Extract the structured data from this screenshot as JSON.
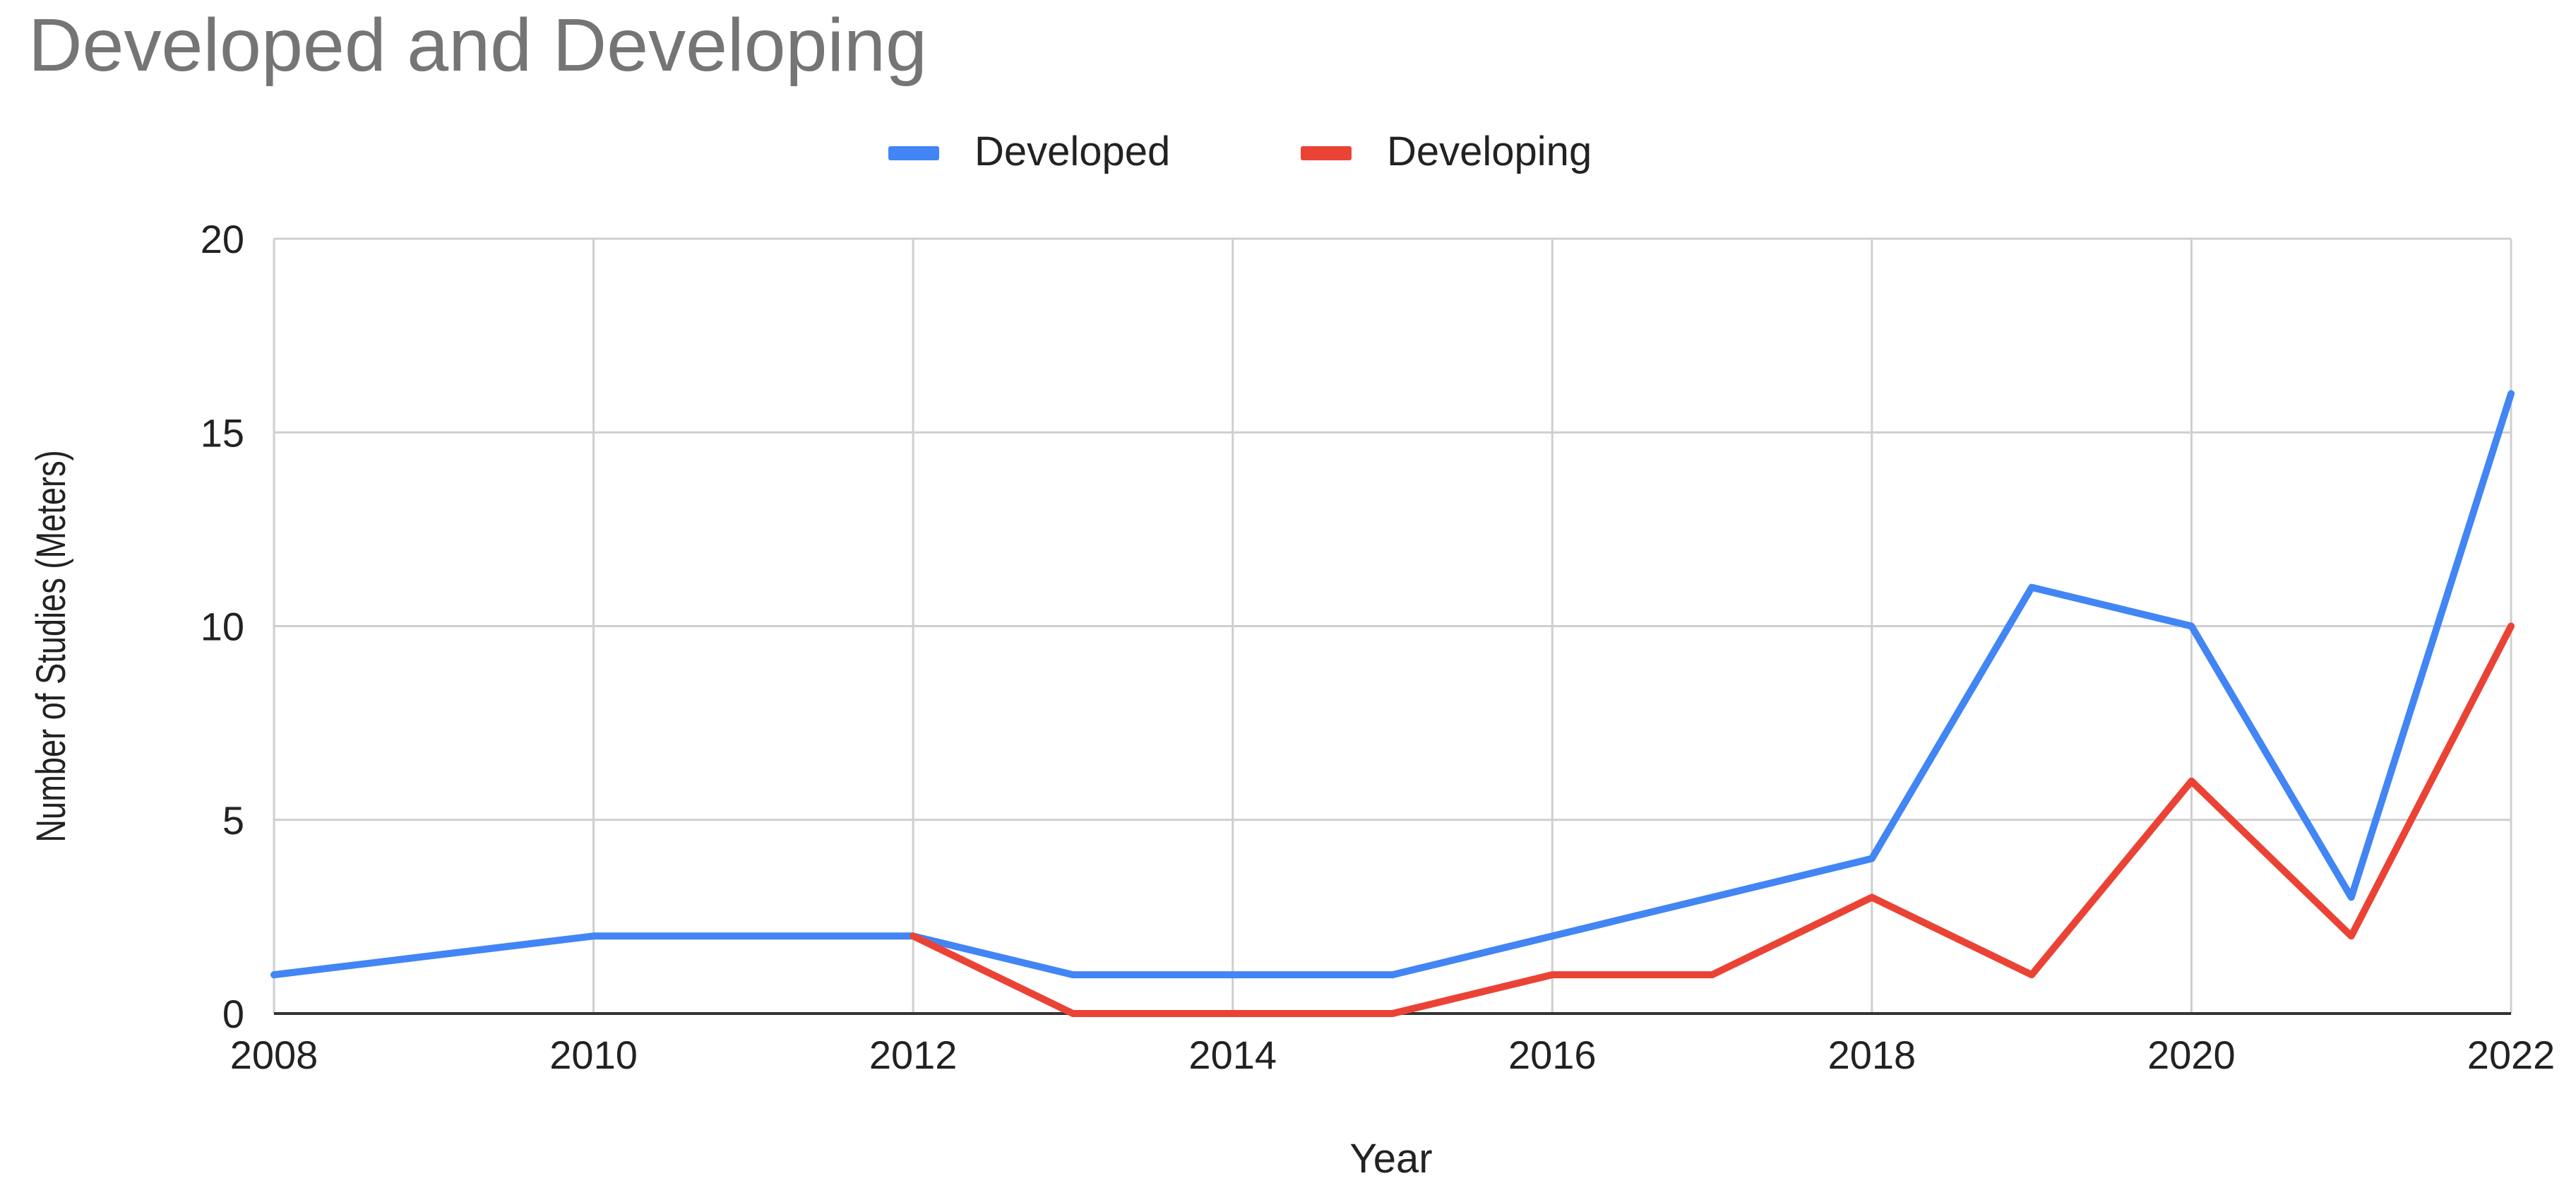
{
  "chart_data": {
    "type": "line",
    "title": "Developed and Developing",
    "xlabel": "Year",
    "ylabel": "Number of Studies (Meters)",
    "xlim": [
      2008,
      2022
    ],
    "ylim": [
      0,
      20
    ],
    "x_ticks": [
      "2008",
      "2010",
      "2012",
      "2014",
      "2016",
      "2018",
      "2020",
      "2022"
    ],
    "y_ticks": [
      "0",
      "5",
      "10",
      "15",
      "20"
    ],
    "grid": true,
    "legend_position": "top-center",
    "series": [
      {
        "name": "Developed",
        "color": "#4285f4",
        "points": [
          [
            2008,
            1
          ],
          [
            2010,
            2
          ],
          [
            2012,
            2
          ],
          [
            2013,
            1
          ],
          [
            2015,
            1
          ],
          [
            2016,
            2
          ],
          [
            2018,
            4
          ],
          [
            2019,
            11
          ],
          [
            2020,
            10
          ],
          [
            2021,
            3
          ],
          [
            2022,
            16
          ]
        ]
      },
      {
        "name": "Developing",
        "color": "#ea4335",
        "points": [
          [
            2012,
            2
          ],
          [
            2013,
            0
          ],
          [
            2015,
            0
          ],
          [
            2016,
            1
          ],
          [
            2017,
            1
          ],
          [
            2018,
            3
          ],
          [
            2019,
            1
          ],
          [
            2020,
            6
          ],
          [
            2021,
            2
          ],
          [
            2022,
            10
          ]
        ]
      }
    ]
  }
}
